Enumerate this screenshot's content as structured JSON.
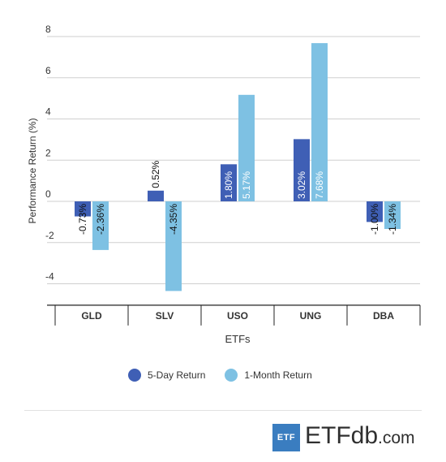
{
  "chart_data": {
    "type": "bar",
    "title": "",
    "xlabel": "ETFs",
    "ylabel": "Performance Return (%)",
    "ylim": [
      -5,
      8
    ],
    "yticks": [
      8,
      6,
      4,
      2,
      0,
      -2,
      -4
    ],
    "categories": [
      "GLD",
      "SLV",
      "USO",
      "UNG",
      "DBA"
    ],
    "series": [
      {
        "name": "5-Day Return",
        "color": "#3f5fb5",
        "values": [
          -0.73,
          0.52,
          1.8,
          3.02,
          -1.0
        ],
        "labels": [
          "-0.73%",
          "0.52%",
          "1.80%",
          "3.02%",
          "-1.00%"
        ]
      },
      {
        "name": "1-Month Return",
        "color": "#7ec1e3",
        "values": [
          -2.36,
          -4.35,
          5.17,
          7.68,
          -1.34
        ],
        "labels": [
          "-2.36%",
          "-4.35%",
          "5.17%",
          "7.68%",
          "-1.34%"
        ]
      }
    ],
    "grid": true,
    "legend_position": "bottom"
  },
  "brand": {
    "box": "ETF",
    "name_main": "ETFdb",
    "name_suffix": ".com"
  }
}
